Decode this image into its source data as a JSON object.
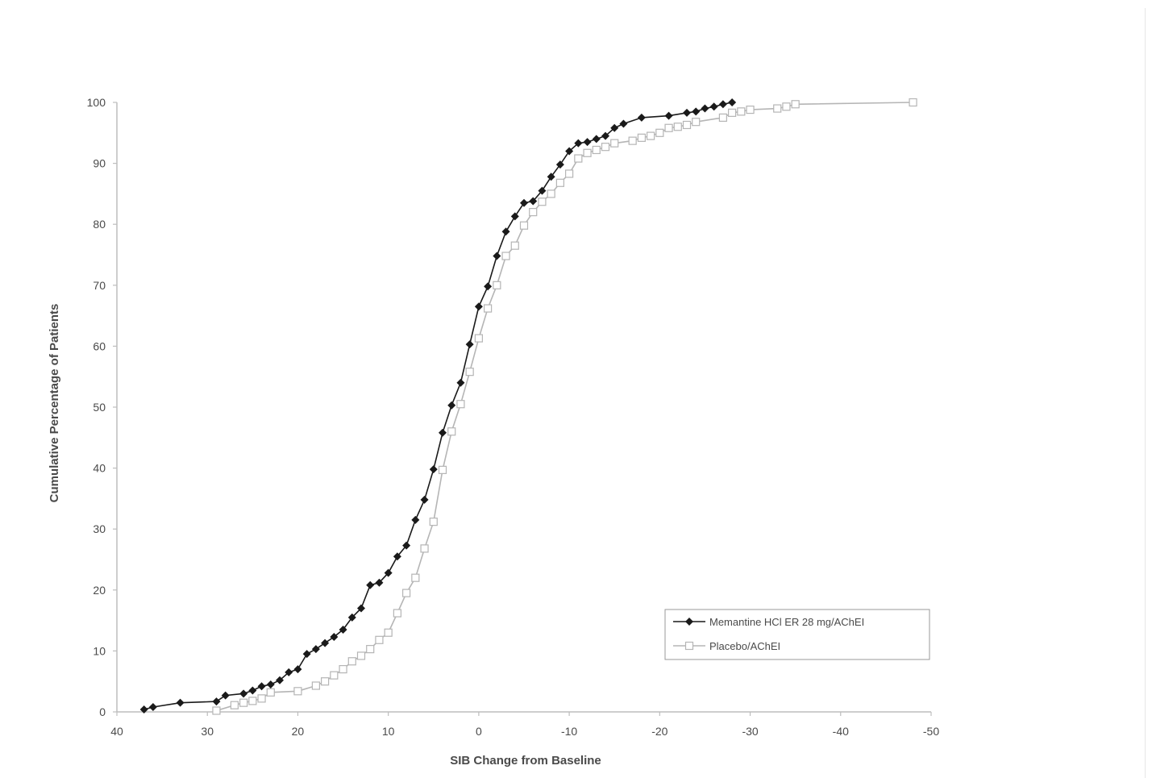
{
  "chart_data": {
    "type": "line",
    "title": "",
    "xlabel": "SIB Change from Baseline",
    "ylabel": "Cumulative Percentage of Patients",
    "xlim": [
      40,
      -50
    ],
    "ylim": [
      0,
      100
    ],
    "x_ticks": [
      "40",
      "30",
      "20",
      "10",
      "0",
      "-10",
      "-20",
      "-30",
      "-40",
      "-50"
    ],
    "y_ticks": [
      "0",
      "10",
      "20",
      "30",
      "40",
      "50",
      "60",
      "70",
      "80",
      "90",
      "100"
    ],
    "grid": false,
    "legend_position": "bottom-right",
    "series": [
      {
        "name": "Memantine HCl ER 28 mg/AChEI",
        "marker": "filled-diamond",
        "color": "#1a1a1a",
        "points": [
          [
            37,
            0.4
          ],
          [
            36,
            0.8
          ],
          [
            33,
            1.5
          ],
          [
            29,
            1.7
          ],
          [
            28,
            2.7
          ],
          [
            26,
            3.0
          ],
          [
            25,
            3.5
          ],
          [
            24,
            4.2
          ],
          [
            23,
            4.5
          ],
          [
            22,
            5.2
          ],
          [
            21,
            6.5
          ],
          [
            20,
            7.0
          ],
          [
            19,
            9.5
          ],
          [
            18,
            10.3
          ],
          [
            17,
            11.3
          ],
          [
            16,
            12.3
          ],
          [
            15,
            13.5
          ],
          [
            14,
            15.5
          ],
          [
            13,
            17.0
          ],
          [
            12,
            20.8
          ],
          [
            11,
            21.2
          ],
          [
            10,
            22.8
          ],
          [
            9,
            25.5
          ],
          [
            8,
            27.3
          ],
          [
            7,
            31.5
          ],
          [
            6,
            34.8
          ],
          [
            5,
            39.8
          ],
          [
            4,
            45.8
          ],
          [
            3,
            50.3
          ],
          [
            2,
            54.0
          ],
          [
            1,
            60.3
          ],
          [
            0,
            66.5
          ],
          [
            -1,
            69.8
          ],
          [
            -2,
            74.8
          ],
          [
            -3,
            78.8
          ],
          [
            -4,
            81.3
          ],
          [
            -5,
            83.5
          ],
          [
            -6,
            83.8
          ],
          [
            -7,
            85.5
          ],
          [
            -8,
            87.8
          ],
          [
            -9,
            89.8
          ],
          [
            -10,
            92.0
          ],
          [
            -11,
            93.3
          ],
          [
            -12,
            93.5
          ],
          [
            -13,
            94.0
          ],
          [
            -14,
            94.5
          ],
          [
            -15,
            95.8
          ],
          [
            -16,
            96.5
          ],
          [
            -18,
            97.5
          ],
          [
            -21,
            97.8
          ],
          [
            -23,
            98.3
          ],
          [
            -24,
            98.5
          ],
          [
            -25,
            99.0
          ],
          [
            -26,
            99.3
          ],
          [
            -27,
            99.7
          ],
          [
            -28,
            100.0
          ]
        ]
      },
      {
        "name": "Placebo/AChEI",
        "marker": "open-square",
        "color": "#b5b5b5",
        "points": [
          [
            29,
            0.2
          ],
          [
            27,
            1.1
          ],
          [
            26,
            1.5
          ],
          [
            25,
            1.8
          ],
          [
            24,
            2.2
          ],
          [
            23,
            3.2
          ],
          [
            20,
            3.4
          ],
          [
            18,
            4.3
          ],
          [
            17,
            5.0
          ],
          [
            16,
            6.0
          ],
          [
            15,
            7.0
          ],
          [
            14,
            8.3
          ],
          [
            13,
            9.2
          ],
          [
            12,
            10.3
          ],
          [
            11,
            11.8
          ],
          [
            10,
            13.0
          ],
          [
            9,
            16.2
          ],
          [
            8,
            19.5
          ],
          [
            7,
            22.0
          ],
          [
            6,
            26.8
          ],
          [
            5,
            31.2
          ],
          [
            4,
            39.7
          ],
          [
            3,
            46.0
          ],
          [
            2,
            50.5
          ],
          [
            1,
            55.8
          ],
          [
            0,
            61.3
          ],
          [
            -1,
            66.2
          ],
          [
            -2,
            70.0
          ],
          [
            -3,
            74.8
          ],
          [
            -4,
            76.5
          ],
          [
            -5,
            79.8
          ],
          [
            -6,
            82.0
          ],
          [
            -7,
            83.7
          ],
          [
            -8,
            85.0
          ],
          [
            -9,
            86.8
          ],
          [
            -10,
            88.3
          ],
          [
            -11,
            90.8
          ],
          [
            -12,
            91.7
          ],
          [
            -13,
            92.2
          ],
          [
            -14,
            92.7
          ],
          [
            -15,
            93.3
          ],
          [
            -17,
            93.7
          ],
          [
            -18,
            94.2
          ],
          [
            -19,
            94.5
          ],
          [
            -20,
            95.0
          ],
          [
            -21,
            95.8
          ],
          [
            -22,
            96.0
          ],
          [
            -23,
            96.3
          ],
          [
            -24,
            96.8
          ],
          [
            -27,
            97.5
          ],
          [
            -28,
            98.3
          ],
          [
            -29,
            98.5
          ],
          [
            -30,
            98.8
          ],
          [
            -33,
            99.0
          ],
          [
            -34,
            99.3
          ],
          [
            -35,
            99.7
          ],
          [
            -48,
            100.0
          ]
        ]
      }
    ]
  }
}
